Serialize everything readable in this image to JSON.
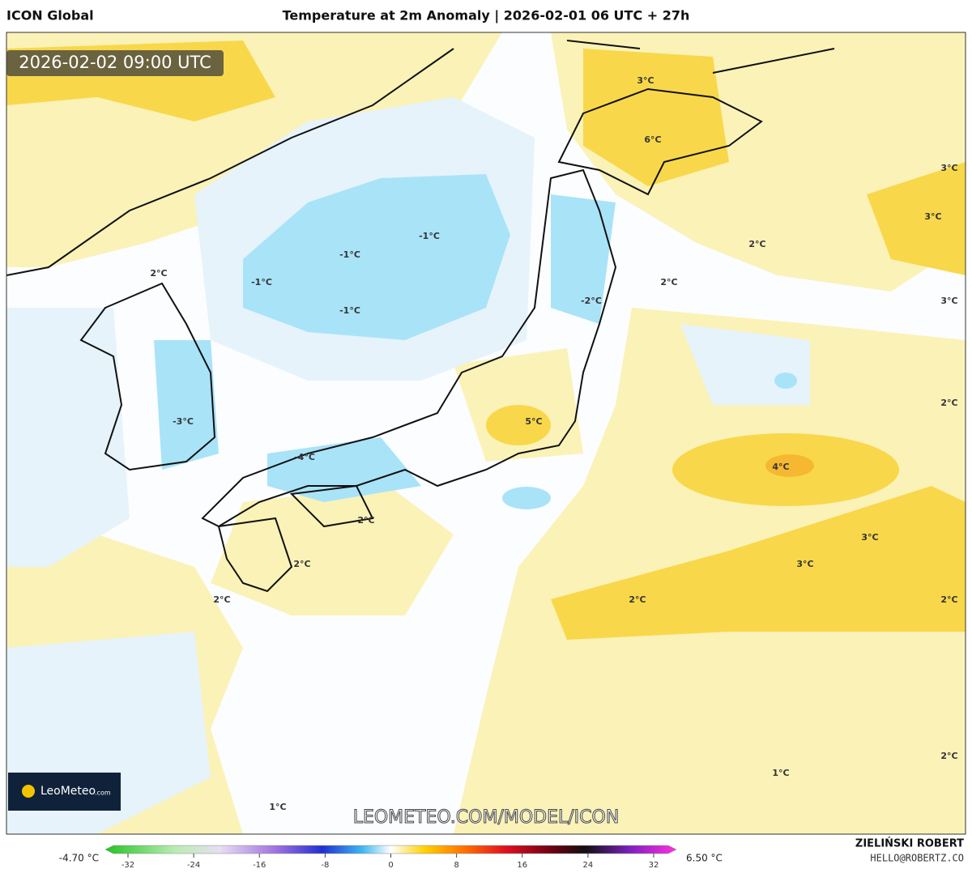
{
  "header": {
    "left": "ICON Global",
    "title": "Temperature at 2m Anomaly | 2026-02-01 06 UTC + 27h"
  },
  "timestamp": "2026-02-02 09:00 UTC",
  "map_labels": [
    "3°C",
    "6°C",
    "3°C",
    "3°C",
    "2°C",
    "2°C",
    "3°C",
    "-1°C",
    "-1°C",
    "-1°C",
    "-1°C",
    "-2°C",
    "2°C",
    "2°C",
    "-3°C",
    "5°C",
    "4°C",
    "-4°C",
    "2°C",
    "3°C",
    "3°C",
    "2°C",
    "2°C",
    "2°C",
    "2°C",
    "2°C",
    "1°C",
    "1°C"
  ],
  "watermark": "LEOMETEO.COM/MODEL/ICON",
  "logo": {
    "name": "LeoMeteo",
    "suffix": ".com"
  },
  "colorbar": {
    "min_label": "-4.70 °C",
    "max_label": "6.50 °C",
    "ticks": [
      -32,
      -24,
      -16,
      -8,
      0,
      8,
      16,
      24,
      32
    ]
  },
  "credit": {
    "name": "ZIELIŃSKI ROBERT",
    "email": "HELLO@ROBERTZ.CO"
  }
}
